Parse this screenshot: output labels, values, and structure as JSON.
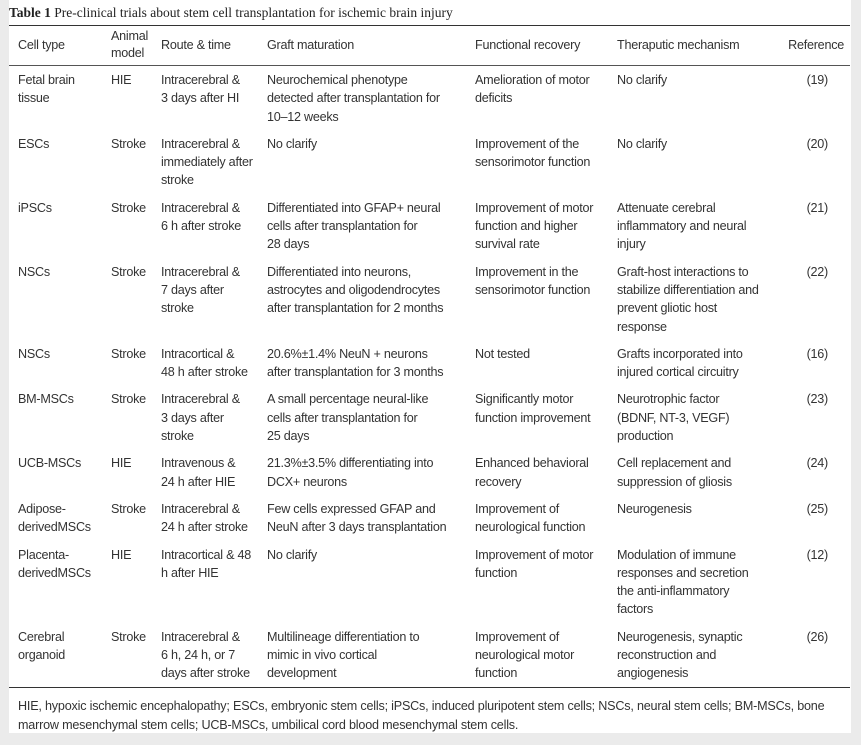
{
  "title": {
    "label": "Table 1",
    "text": "Pre-clinical trials about stem cell transplantation for ischemic brain injury"
  },
  "headers": [
    "Cell type",
    "Animal\nmodel",
    "Route & time",
    "Graft maturation",
    "Functional recovery",
    "Theraputic mechanism",
    "Reference"
  ],
  "rows": [
    [
      "Fetal brain\ntissue",
      "HIE",
      "Intracerebral &\n3 days after HI",
      "Neurochemical phenotype\ndetected after transplantation for\n10–12 weeks",
      "Amelioration of motor\ndeficits",
      "No clarify",
      "(19)"
    ],
    [
      "ESCs",
      "Stroke",
      "Intracerebral &\nimmediately after\nstroke",
      "No clarify",
      "Improvement of the\nsensorimotor function",
      "No clarify",
      "(20)"
    ],
    [
      "iPSCs",
      "Stroke",
      "Intracerebral &\n6 h after stroke",
      "Differentiated into GFAP+ neural\ncells after transplantation for\n28 days",
      "Improvement of motor\nfunction and higher\nsurvival rate",
      "Attenuate cerebral\ninflammatory and neural\ninjury",
      "(21)"
    ],
    [
      "NSCs",
      "Stroke",
      "Intracerebral &\n7 days after\nstroke",
      "Differentiated into neurons,\nastrocytes and oligodendrocytes\nafter transplantation for 2 months",
      "Improvement in the\nsensorimotor function",
      "Graft-host interactions to\nstabilize differentiation and\nprevent gliotic host\nresponse",
      "(22)"
    ],
    [
      "NSCs",
      "Stroke",
      "Intracortical &\n48 h after stroke",
      "20.6%±1.4% NeuN + neurons\nafter transplantation for 3 months",
      "Not tested",
      "Grafts incorporated into\ninjured cortical circuitry",
      "(16)"
    ],
    [
      "BM-MSCs",
      "Stroke",
      "Intracerebral &\n3 days after\nstroke",
      "A small percentage neural-like\ncells after transplantation for\n25 days",
      "Significantly motor\nfunction improvement",
      "Neurotrophic factor\n(BDNF, NT-3, VEGF)\nproduction",
      "(23)"
    ],
    [
      "UCB-MSCs",
      "HIE",
      "Intravenous &\n24 h after HIE",
      "21.3%±3.5% differentiating into\nDCX+ neurons",
      "Enhanced behavioral\nrecovery",
      "Cell replacement and\nsuppression of gliosis",
      "(24)"
    ],
    [
      "Adipose-\nderivedMSCs",
      "Stroke",
      "Intracerebral &\n24 h after stroke",
      "Few cells expressed GFAP and\nNeuN after 3 days transplantation",
      "Improvement of\nneurological function",
      "Neurogenesis",
      "(25)"
    ],
    [
      "Placenta-\nderivedMSCs",
      "HIE",
      "Intracortical & 48\nh after HIE",
      "No clarify",
      "Improvement of motor\nfunction",
      "Modulation of immune\nresponses and secretion\nthe anti-inflammatory\nfactors",
      "(12)"
    ],
    [
      "Cerebral\norganoid",
      "Stroke",
      "Intracerebral &\n6 h, 24 h, or 7\ndays after stroke",
      "Multilineage differentiation to\nmimic in vivo cortical\ndevelopment",
      "Improvement of\nneurological motor\nfunction",
      "Neurogenesis, synaptic\nreconstruction and\nangiogenesis",
      "(26)"
    ]
  ],
  "footnote": "HIE, hypoxic ischemic encephalopathy; ESCs, embryonic stem cells; iPSCs, induced pluripotent stem cells; NSCs, neural stem cells; BM-MSCs, bone marrow mesenchymal stem cells; UCB-MSCs, umbilical cord blood mesenchymal stem cells."
}
